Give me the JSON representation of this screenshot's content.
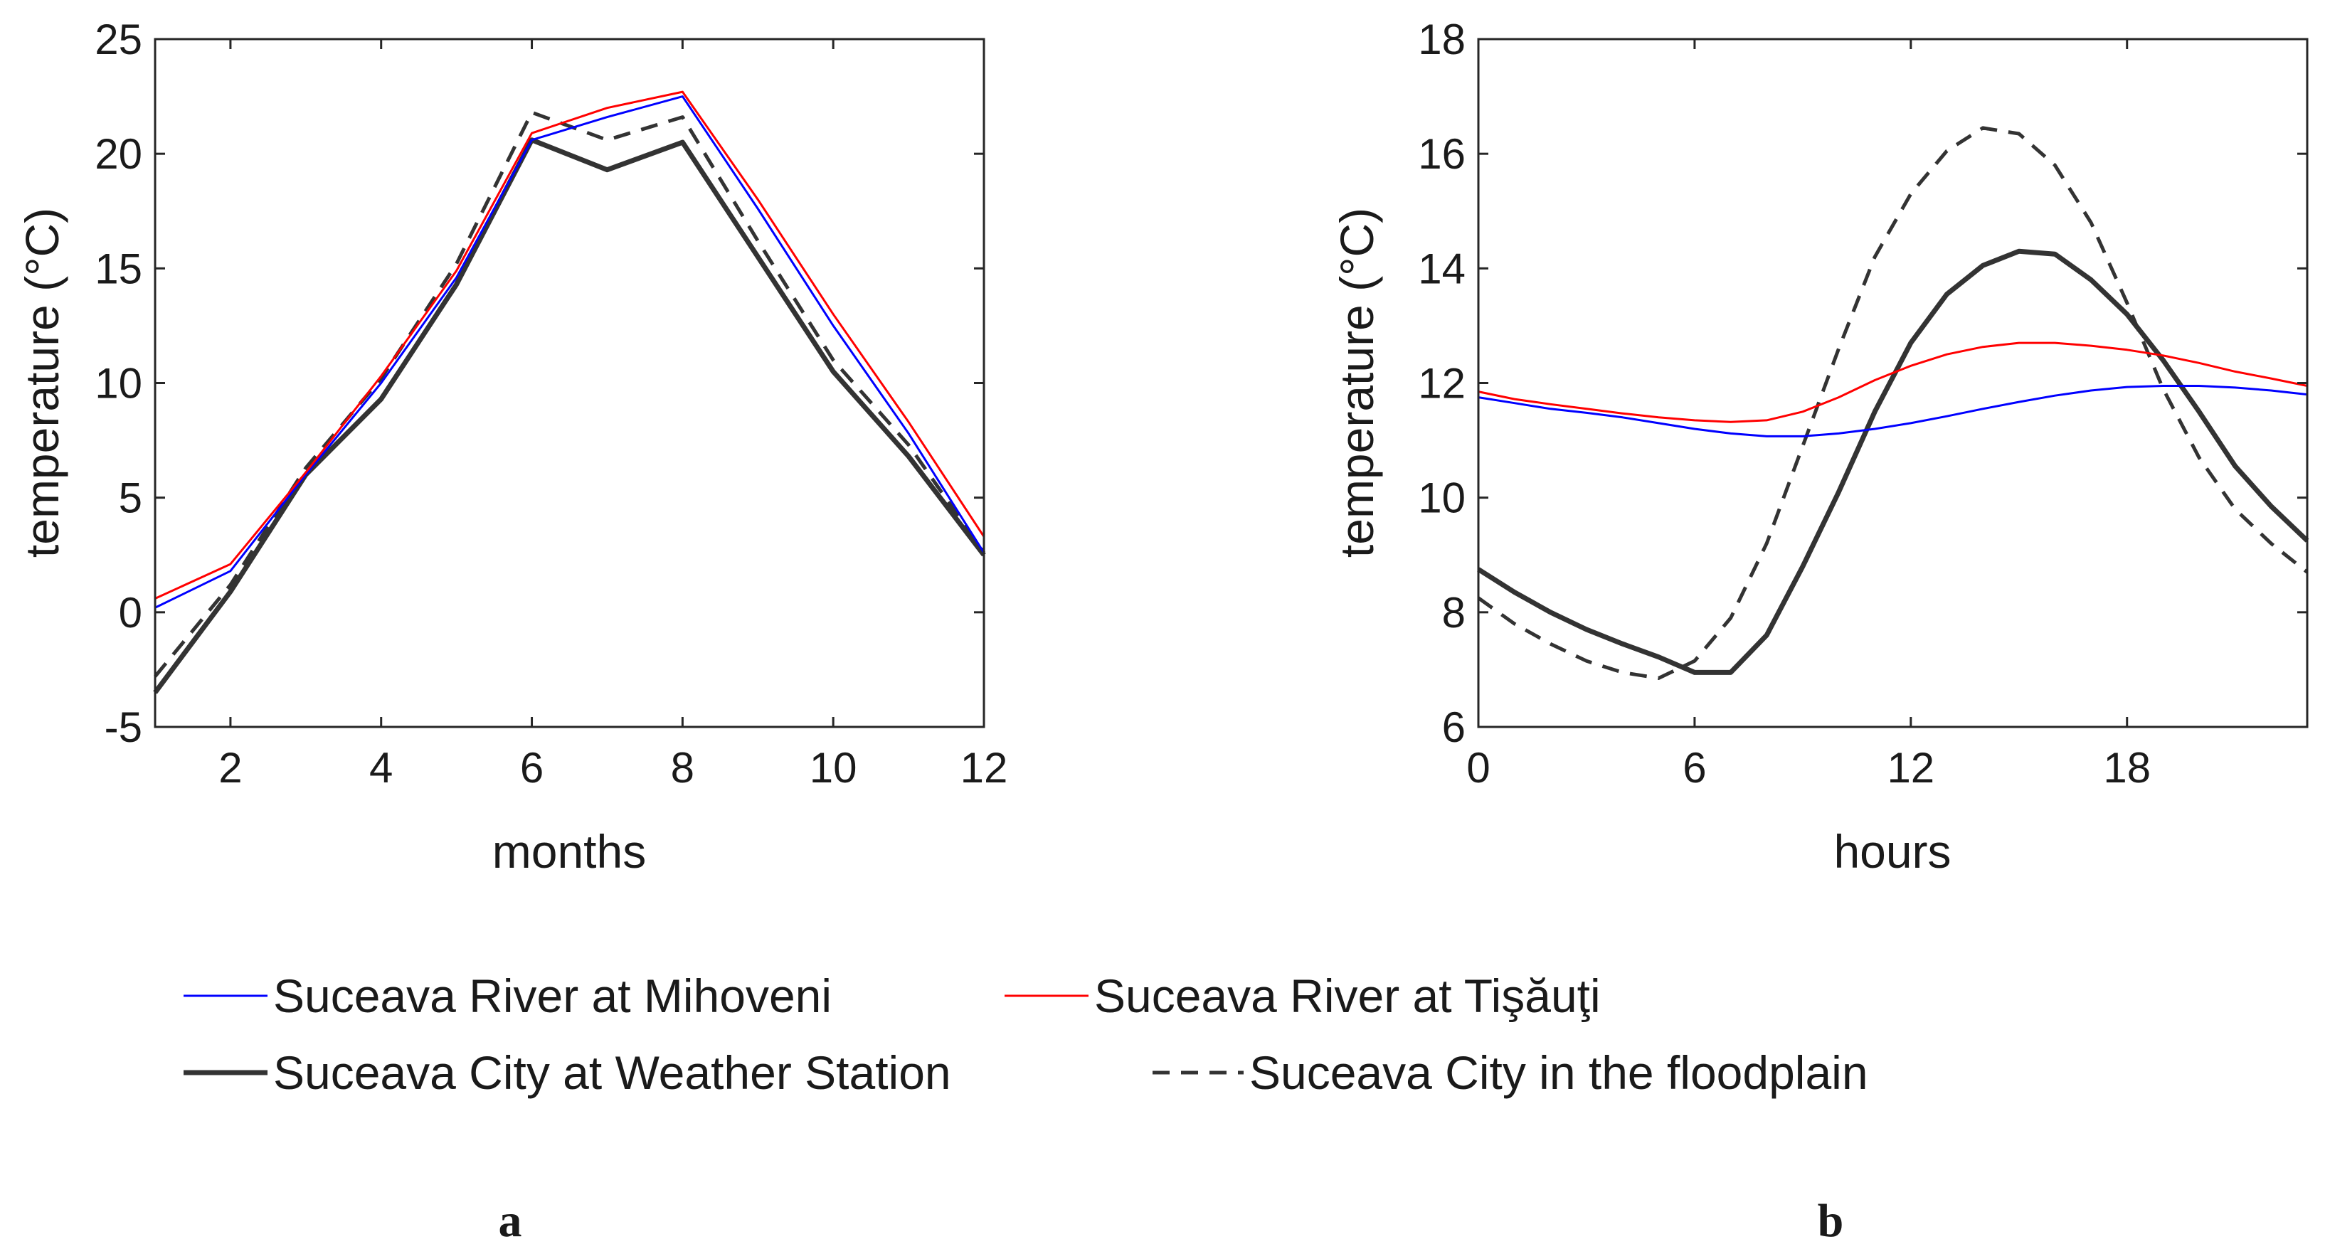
{
  "chart_data": [
    {
      "type": "line",
      "panel": "a",
      "xlabel": "months",
      "ylabel": "temperature (°C)",
      "xlim": [
        1,
        12
      ],
      "ylim": [
        -5,
        25
      ],
      "xticks": [
        2,
        4,
        6,
        8,
        10,
        12
      ],
      "yticks": [
        -5,
        0,
        5,
        10,
        15,
        20,
        25
      ],
      "x": [
        1,
        2,
        3,
        4,
        5,
        6,
        7,
        8,
        9,
        10,
        11,
        12
      ],
      "series": [
        {
          "name": "Suceava River at Mihoveni",
          "values": [
            0.2,
            1.8,
            6.0,
            10.0,
            14.6,
            20.6,
            21.6,
            22.5,
            17.6,
            12.5,
            7.8,
            2.6
          ]
        },
        {
          "name": "Suceava River at Tişăuţi",
          "values": [
            0.6,
            2.1,
            6.1,
            10.3,
            14.9,
            20.9,
            22.0,
            22.7,
            18.0,
            13.0,
            8.3,
            3.3
          ]
        },
        {
          "name": "Suceava City at Weather Station",
          "values": [
            -3.5,
            0.9,
            6.0,
            9.3,
            14.3,
            20.6,
            19.3,
            20.5,
            15.5,
            10.5,
            6.8,
            2.5
          ]
        },
        {
          "name": "Suceava City in the floodplain",
          "values": [
            -2.8,
            1.2,
            6.3,
            10.2,
            15.2,
            21.8,
            20.6,
            21.6,
            16.2,
            11.0,
            7.3,
            2.6
          ]
        }
      ]
    },
    {
      "type": "line",
      "panel": "b",
      "xlabel": "hours",
      "ylabel": "temperature (°C)",
      "xlim": [
        0,
        23
      ],
      "ylim": [
        6,
        18
      ],
      "xticks": [
        0,
        6,
        12,
        18
      ],
      "yticks": [
        6,
        8,
        10,
        12,
        14,
        16,
        18
      ],
      "x": [
        0,
        1,
        2,
        3,
        4,
        5,
        6,
        7,
        8,
        9,
        10,
        11,
        12,
        13,
        14,
        15,
        16,
        17,
        18,
        19,
        20,
        21,
        22,
        23
      ],
      "series": [
        {
          "name": "Suceava River at Mihoveni",
          "values": [
            11.75,
            11.65,
            11.55,
            11.48,
            11.4,
            11.3,
            11.2,
            11.12,
            11.07,
            11.07,
            11.12,
            11.2,
            11.3,
            11.42,
            11.55,
            11.67,
            11.78,
            11.87,
            11.93,
            11.95,
            11.95,
            11.92,
            11.87,
            11.8
          ]
        },
        {
          "name": "Suceava River at Tişăuţi",
          "values": [
            11.85,
            11.72,
            11.63,
            11.55,
            11.47,
            11.4,
            11.35,
            11.32,
            11.35,
            11.5,
            11.75,
            12.05,
            12.3,
            12.5,
            12.63,
            12.7,
            12.7,
            12.65,
            12.58,
            12.48,
            12.35,
            12.2,
            12.08,
            11.95
          ]
        },
        {
          "name": "Suceava City at Weather Station",
          "values": [
            8.75,
            8.35,
            8.0,
            7.7,
            7.45,
            7.22,
            6.95,
            6.95,
            7.6,
            8.8,
            10.1,
            11.5,
            12.7,
            13.55,
            14.05,
            14.3,
            14.25,
            13.8,
            13.2,
            12.4,
            11.5,
            10.55,
            9.85,
            9.25
          ]
        },
        {
          "name": "Suceava City in the floodplain",
          "values": [
            8.25,
            7.8,
            7.45,
            7.15,
            6.95,
            6.85,
            7.15,
            7.9,
            9.2,
            10.9,
            12.6,
            14.2,
            15.3,
            16.05,
            16.45,
            16.35,
            15.8,
            14.8,
            13.4,
            11.9,
            10.7,
            9.8,
            9.2,
            8.7
          ]
        }
      ]
    }
  ],
  "legend": {
    "items": [
      {
        "label": "Suceava River at Mihoveni",
        "color": "#0000ff",
        "dash": "solid"
      },
      {
        "label": "Suceava River at Tişăuţi",
        "color": "#ff0000",
        "dash": "solid"
      },
      {
        "label": "Suceava City at Weather Station",
        "color": "#333333",
        "dash": "solid"
      },
      {
        "label": "Suceava City in the floodplain",
        "color": "#333333",
        "dash": "dashed"
      }
    ]
  },
  "panel_labels": {
    "a": "a",
    "b": "b"
  },
  "colors": {
    "mihoveni": "#0000ff",
    "tisauti": "#ff0000",
    "weather": "#333333",
    "floodplain": "#333333",
    "axis": "#262626"
  }
}
